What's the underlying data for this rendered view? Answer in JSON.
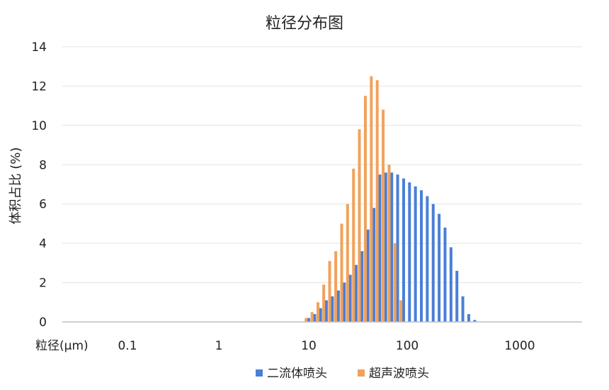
{
  "chart_data": {
    "type": "bar",
    "title": "粒径分布图",
    "ylabel": "体积占比 (%)",
    "xlabel": "粒径(μm)",
    "ylim": [
      0,
      14
    ],
    "y_ticks": [
      "0",
      "2",
      "4",
      "6",
      "8",
      "10",
      "12",
      "14"
    ],
    "x_ticks": [
      {
        "value": 0.1,
        "label": "0.1"
      },
      {
        "value": 1,
        "label": "1"
      },
      {
        "value": 10,
        "label": "10"
      },
      {
        "value": 100,
        "label": "100"
      },
      {
        "value": 1000,
        "label": "1000"
      }
    ],
    "x_scale": "log",
    "grid": true,
    "legend_position": "bottom",
    "series": [
      {
        "name": "二流体喷头",
        "color": "#4a7fd6",
        "x": [
          10.0,
          11.5,
          13.2,
          15.1,
          17.4,
          20.0,
          23.0,
          26.4,
          30.3,
          34.8,
          40.0,
          46.0,
          52.8,
          60.6,
          69.7,
          80.0,
          92.0,
          105.6,
          121.3,
          139.3,
          160.0,
          183.8,
          211.1,
          242.5,
          278.6,
          320.0,
          367.6,
          422.3,
          485.0
        ],
        "values": [
          0.2,
          0.4,
          0.7,
          1.1,
          1.3,
          1.6,
          2.0,
          2.4,
          2.9,
          3.6,
          4.7,
          5.8,
          7.5,
          7.6,
          7.6,
          7.5,
          7.3,
          7.1,
          6.9,
          6.7,
          6.4,
          6.0,
          5.5,
          4.8,
          3.8,
          2.6,
          1.3,
          0.4,
          0.1
        ]
      },
      {
        "name": "超声波喷头",
        "color": "#f0a25c",
        "x": [
          9.4,
          10.8,
          12.4,
          14.2,
          16.3,
          18.8,
          21.6,
          24.8,
          28.5,
          32.7,
          37.6,
          43.2,
          49.6,
          57.0,
          65.5,
          75.2,
          86.4
        ],
        "values": [
          0.2,
          0.5,
          1.0,
          1.9,
          3.1,
          3.6,
          5.0,
          6.0,
          7.8,
          9.8,
          11.5,
          12.5,
          12.3,
          10.8,
          8.0,
          4.0,
          1.1
        ]
      }
    ]
  }
}
